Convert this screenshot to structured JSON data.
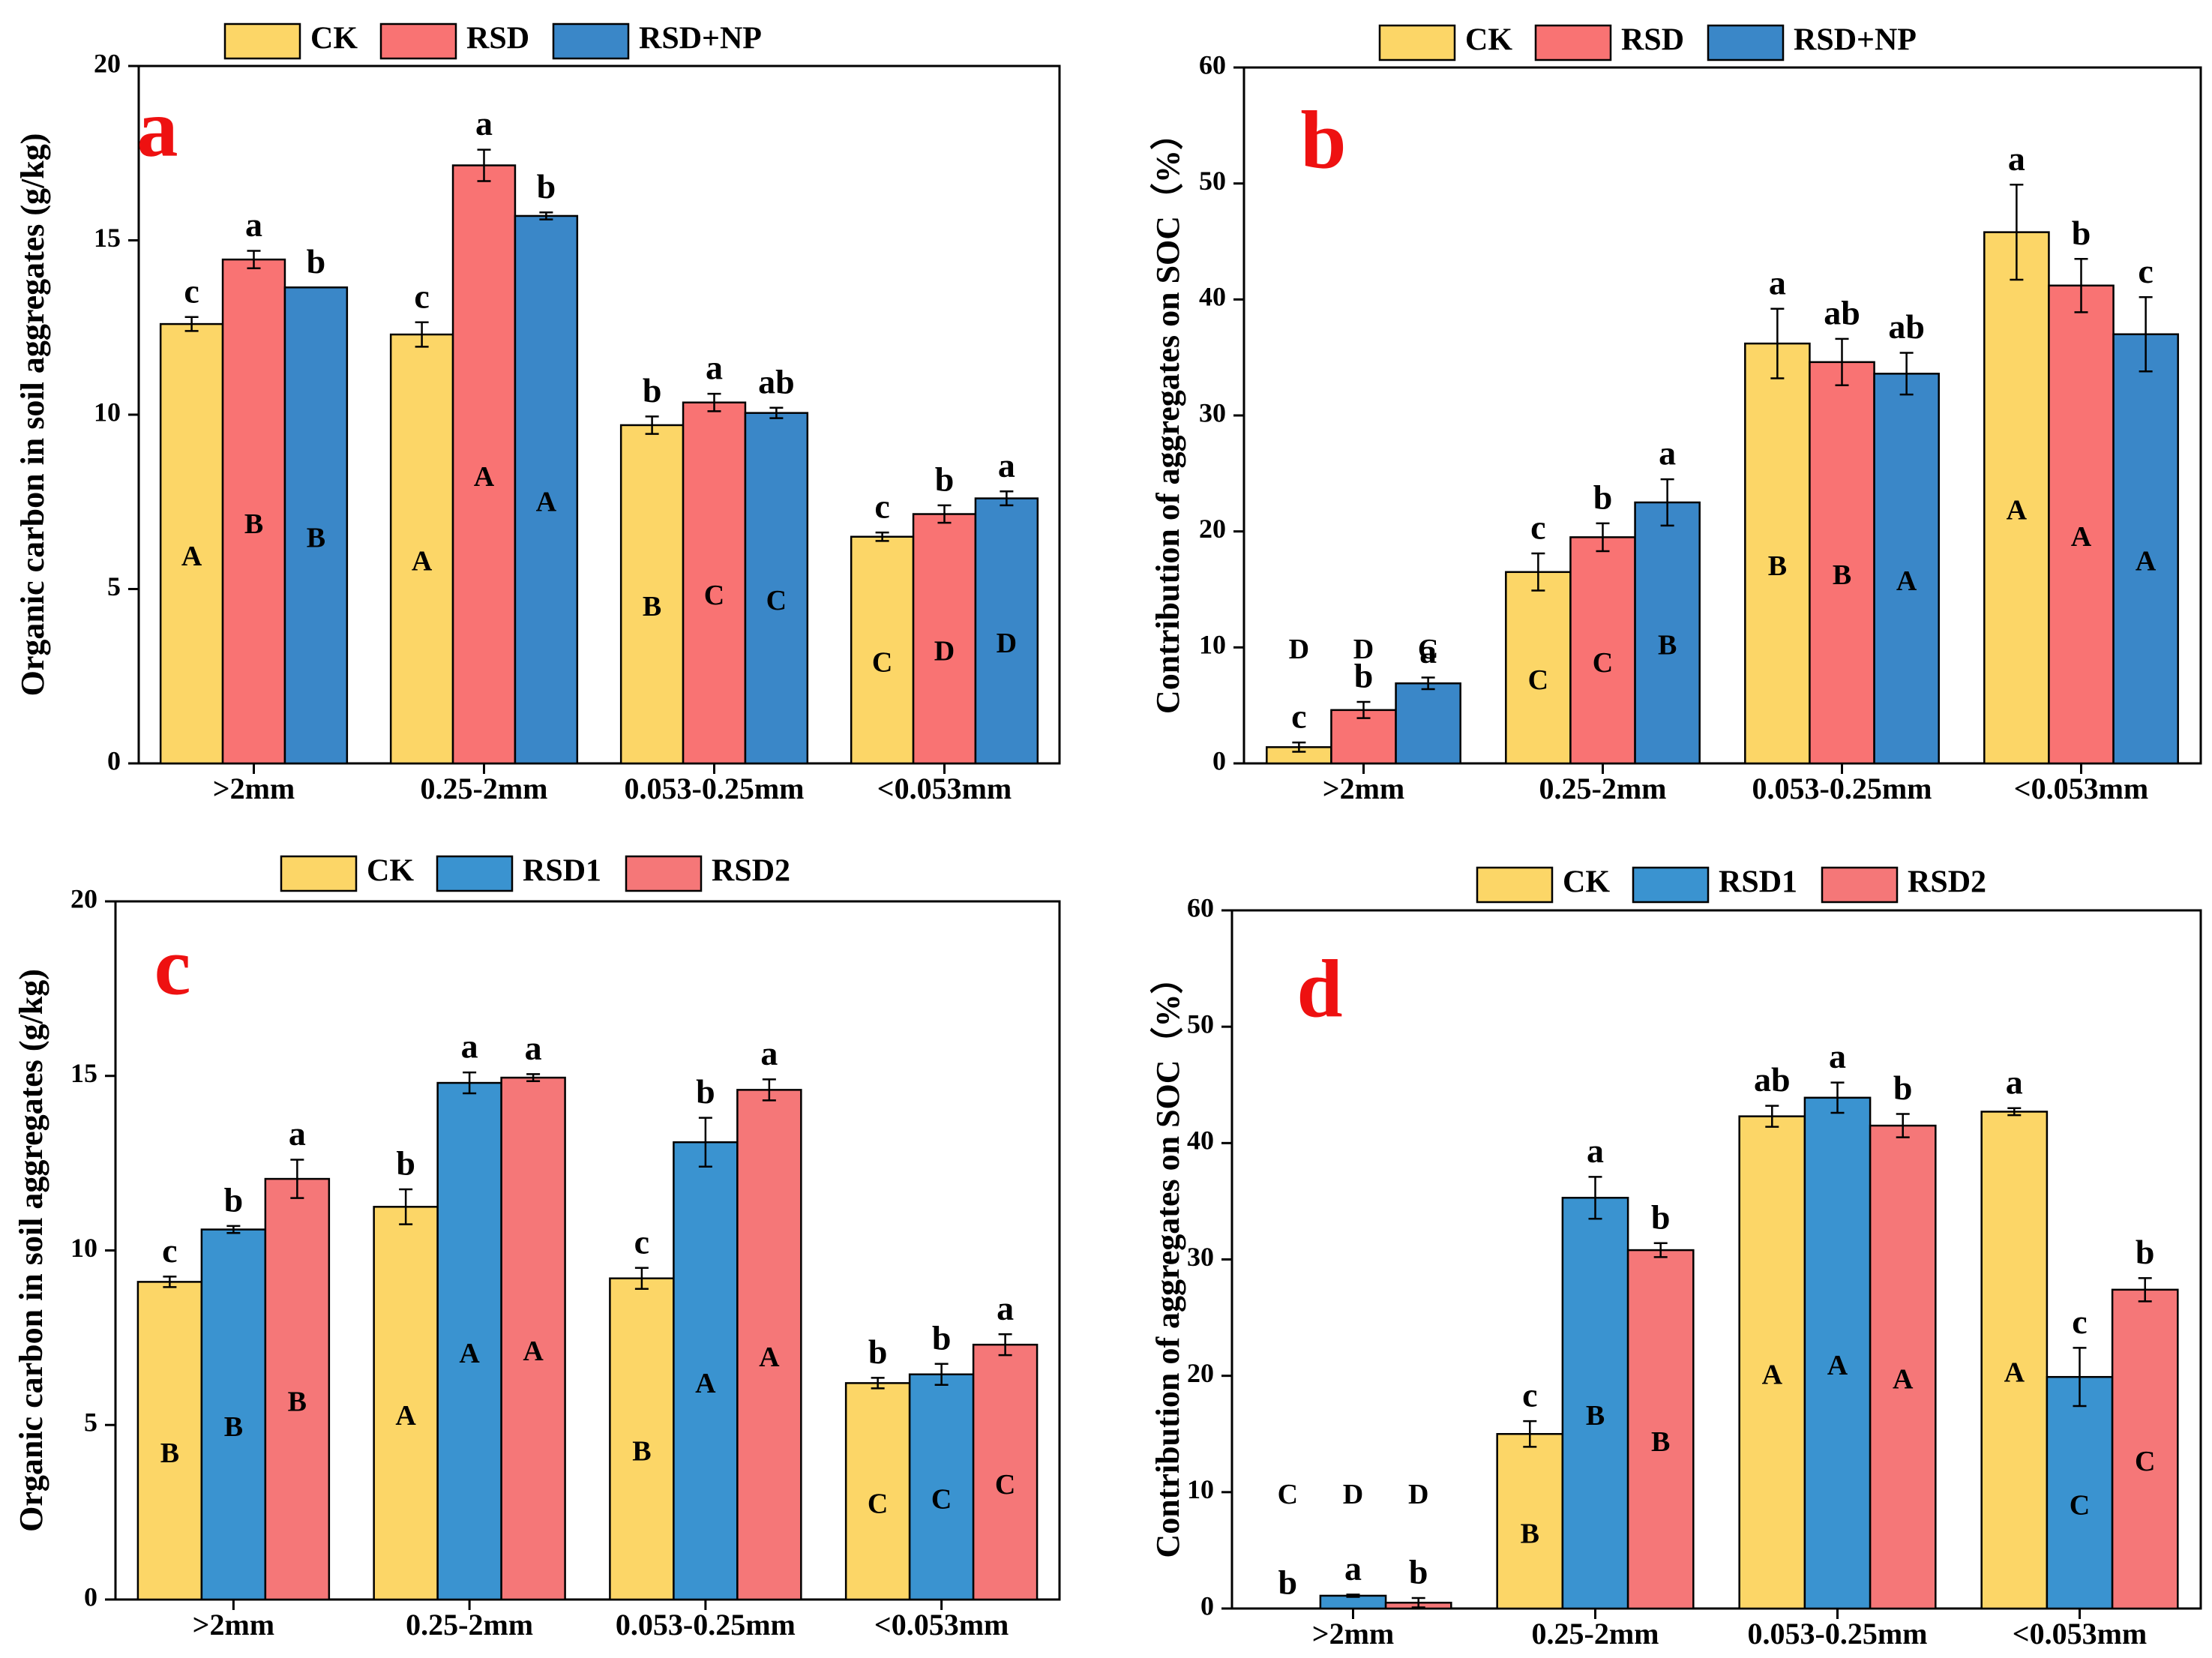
{
  "colors": {
    "CK": "#fcd667",
    "RSD": "#f97373",
    "RSD+NP": "#3a87c8",
    "RSD1": "#3a93d0",
    "RSD2": "#f57778",
    "panel_letter": "#ee1111"
  },
  "chart_data": [
    {
      "panel": "a",
      "type": "bar",
      "ylabel": "Organic carbon in soil aggregates (g/kg)",
      "xlabel": "",
      "ylim": [
        0,
        20
      ],
      "yticks": [
        0,
        5,
        10,
        15,
        20
      ],
      "categories": [
        ">2mm",
        "0.25-2mm",
        "0.053-0.25mm",
        "<0.053mm"
      ],
      "legend": [
        "CK",
        "RSD",
        "RSD+NP"
      ],
      "series": [
        {
          "name": "CK",
          "color_key": "CK",
          "values": [
            12.6,
            12.3,
            9.7,
            6.5
          ],
          "errors": [
            0.2,
            0.35,
            0.25,
            0.12
          ],
          "lower": [
            "c",
            "c",
            "b",
            "c"
          ],
          "upper": [
            "A",
            "A",
            "B",
            "C"
          ]
        },
        {
          "name": "RSD",
          "color_key": "RSD",
          "values": [
            14.45,
            17.15,
            10.35,
            7.15
          ],
          "errors": [
            0.25,
            0.45,
            0.25,
            0.25
          ],
          "lower": [
            "a",
            "a",
            "a",
            "b"
          ],
          "upper": [
            "B",
            "A",
            "C",
            "D"
          ]
        },
        {
          "name": "RSD+NP",
          "color_key": "RSD+NP",
          "values": [
            13.65,
            15.7,
            10.05,
            7.6
          ],
          "errors": [
            0,
            0.1,
            0.15,
            0.2
          ],
          "lower": [
            "b",
            "b",
            "ab",
            "a"
          ],
          "upper": [
            "B",
            "A",
            "C",
            "D"
          ]
        }
      ]
    },
    {
      "panel": "b",
      "type": "bar",
      "ylabel": "Contribution of aggregates on SOC（%）",
      "xlabel": "",
      "ylim": [
        0,
        60
      ],
      "yticks": [
        0,
        10,
        20,
        30,
        40,
        50,
        60
      ],
      "categories": [
        ">2mm",
        "0.25-2mm",
        "0.053-0.25mm",
        "<0.053mm"
      ],
      "legend": [
        "CK",
        "RSD",
        "RSD+NP"
      ],
      "series": [
        {
          "name": "CK",
          "color_key": "CK",
          "values": [
            1.4,
            16.5,
            36.2,
            45.8
          ],
          "errors": [
            0.4,
            1.6,
            3.0,
            4.1
          ],
          "lower": [
            "c",
            "c",
            "a",
            "a"
          ],
          "upper": [
            "D",
            "C",
            "B",
            "A"
          ]
        },
        {
          "name": "RSD",
          "color_key": "RSD",
          "values": [
            4.6,
            19.5,
            34.6,
            41.2
          ],
          "errors": [
            0.7,
            1.2,
            2.0,
            2.3
          ],
          "lower": [
            "b",
            "b",
            "ab",
            "b"
          ],
          "upper": [
            "D",
            "C",
            "B",
            "A"
          ]
        },
        {
          "name": "RSD+NP",
          "color_key": "RSD+NP",
          "values": [
            6.9,
            22.5,
            33.6,
            37.0
          ],
          "errors": [
            0.5,
            2.0,
            1.8,
            3.2
          ],
          "lower": [
            "a",
            "a",
            "ab",
            "c"
          ],
          "upper": [
            "C",
            "B",
            "A",
            "A"
          ]
        }
      ]
    },
    {
      "panel": "c",
      "type": "bar",
      "ylabel": "Organic carbon in soil aggregates (g/kg)",
      "xlabel": "",
      "ylim": [
        0,
        20
      ],
      "yticks": [
        0,
        5,
        10,
        15,
        20
      ],
      "categories": [
        ">2mm",
        "0.25-2mm",
        "0.053-0.25mm",
        "<0.053mm"
      ],
      "legend": [
        "CK",
        "RSD1",
        "RSD2"
      ],
      "series": [
        {
          "name": "CK",
          "color_key": "CK",
          "values": [
            9.1,
            11.25,
            9.2,
            6.2
          ],
          "errors": [
            0.15,
            0.5,
            0.3,
            0.15
          ],
          "lower": [
            "c",
            "b",
            "c",
            "b"
          ],
          "upper": [
            "B",
            "A",
            "B",
            "C"
          ]
        },
        {
          "name": "RSD1",
          "color_key": "RSD1",
          "values": [
            10.6,
            14.8,
            13.1,
            6.45
          ],
          "errors": [
            0.1,
            0.3,
            0.7,
            0.3
          ],
          "lower": [
            "b",
            "a",
            "b",
            "b"
          ],
          "upper": [
            "B",
            "A",
            "A",
            "C"
          ]
        },
        {
          "name": "RSD2",
          "color_key": "RSD2",
          "values": [
            12.05,
            14.95,
            14.6,
            7.3
          ],
          "errors": [
            0.55,
            0.1,
            0.3,
            0.3
          ],
          "lower": [
            "a",
            "a",
            "a",
            "a"
          ],
          "upper": [
            "B",
            "A",
            "A",
            "C"
          ]
        }
      ]
    },
    {
      "panel": "d",
      "type": "bar",
      "ylabel": "Contribution of aggregates on SOC（%）",
      "xlabel": "",
      "ylim": [
        0,
        60
      ],
      "yticks": [
        0,
        10,
        20,
        30,
        40,
        50,
        60
      ],
      "categories": [
        ">2mm",
        "0.25-2mm",
        "0.053-0.25mm",
        "<0.053mm"
      ],
      "legend": [
        "CK",
        "RSD1",
        "RSD2"
      ],
      "series": [
        {
          "name": "CK",
          "color_key": "CK",
          "values": [
            0,
            15.0,
            42.3,
            42.7
          ],
          "errors": [
            0,
            1.1,
            0.9,
            0.3
          ],
          "lower": [
            "b",
            "c",
            "ab",
            "a"
          ],
          "upper": [
            "C",
            "B",
            "A",
            "A"
          ]
        },
        {
          "name": "RSD1",
          "color_key": "RSD1",
          "values": [
            1.1,
            35.3,
            43.9,
            19.9
          ],
          "errors": [
            0.1,
            1.8,
            1.3,
            2.5
          ],
          "lower": [
            "a",
            "a",
            "a",
            "c"
          ],
          "upper": [
            "D",
            "B",
            "A",
            "C"
          ]
        },
        {
          "name": "RSD2",
          "color_key": "RSD2",
          "values": [
            0.5,
            30.8,
            41.5,
            27.4
          ],
          "errors": [
            0.4,
            0.6,
            1.0,
            1.0
          ],
          "lower": [
            "b",
            "b",
            "b",
            "b"
          ],
          "upper": [
            "D",
            "B",
            "A",
            "C"
          ]
        }
      ]
    }
  ]
}
